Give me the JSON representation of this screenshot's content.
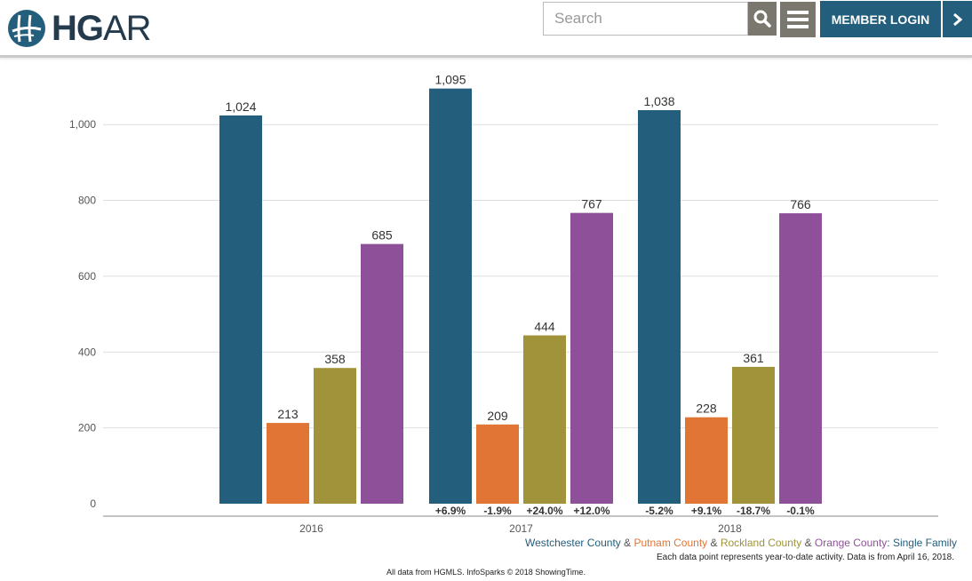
{
  "header": {
    "logo_text_bold": "HG",
    "logo_text_light": "AR",
    "search_placeholder": "Search",
    "search_icon": "search-icon",
    "menu_icon": "menu-icon",
    "login_label": "MEMBER LOGIN",
    "login_arrow_icon": "chevron-right-icon",
    "brand_color": "#235e7c"
  },
  "chart_data": {
    "type": "bar",
    "categories": [
      "2016",
      "2017",
      "2018"
    ],
    "ylim": [
      0,
      1100
    ],
    "yticks": [
      0,
      200,
      400,
      600,
      800,
      1000
    ],
    "ytick_labels": [
      "0",
      "200",
      "400",
      "600",
      "800",
      "1,000"
    ],
    "grid": true,
    "series": [
      {
        "name": "Westchester County",
        "color": "#235e7c",
        "values": [
          1024,
          1095,
          1038
        ],
        "labels": [
          "1,024",
          "1,095",
          "1,038"
        ],
        "changes": [
          "",
          "+6.9%",
          "-5.2%"
        ]
      },
      {
        "name": "Putnam County",
        "color": "#e07535",
        "values": [
          213,
          209,
          228
        ],
        "labels": [
          "213",
          "209",
          "228"
        ],
        "changes": [
          "",
          "-1.9%",
          "+9.1%"
        ]
      },
      {
        "name": "Rockland County",
        "color": "#a19339",
        "values": [
          358,
          444,
          361
        ],
        "labels": [
          "358",
          "444",
          "361"
        ],
        "changes": [
          "",
          "+24.0%",
          "-18.7%"
        ]
      },
      {
        "name": "Orange County",
        "color": "#8e5199",
        "values": [
          685,
          767,
          766
        ],
        "labels": [
          "685",
          "767",
          "766"
        ],
        "changes": [
          "",
          "+12.0%",
          "-0.1%"
        ]
      }
    ]
  },
  "legend": {
    "items": [
      {
        "text": "Westchester County",
        "color": "#235e7c"
      },
      {
        "text": " & ",
        "color": "#555555"
      },
      {
        "text": "Putnam County",
        "color": "#e07535"
      },
      {
        "text": " & ",
        "color": "#555555"
      },
      {
        "text": "Rockland County",
        "color": "#a19339"
      },
      {
        "text": " & ",
        "color": "#555555"
      },
      {
        "text": "Orange County",
        "color": "#8e5199"
      },
      {
        "text": ": Single Family",
        "color": "#235e7c"
      }
    ]
  },
  "footnote": "Each data point represents year-to-date activity. Data is from April 16, 2018.",
  "source": "All data from HGMLS. InfoSparks © 2018 ShowingTime."
}
